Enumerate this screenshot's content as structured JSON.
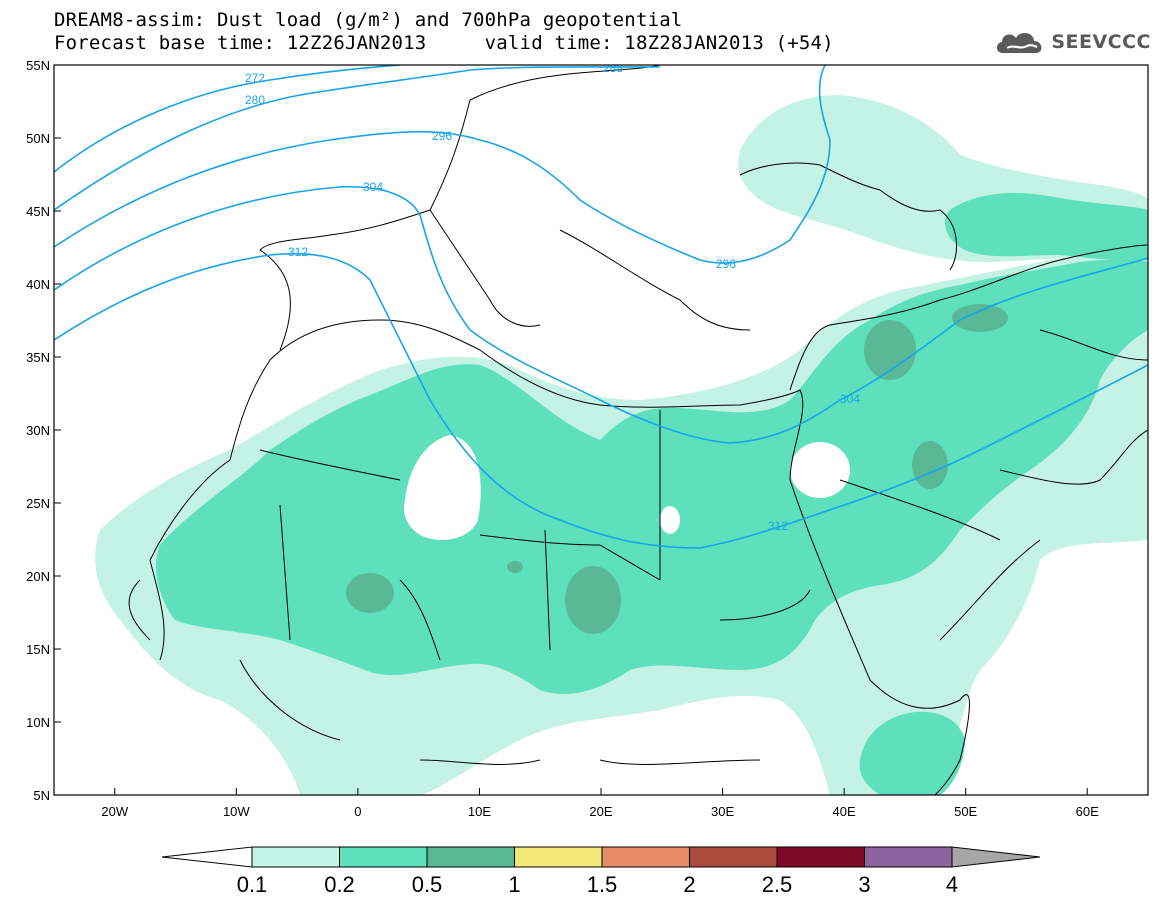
{
  "title": {
    "line1": "DREAM8-assim: Dust load (g/m²) and 700hPa geopotential",
    "line2": "Forecast base time: 12Z26JAN2013     valid time: 18Z28JAN2013 (+54)"
  },
  "logo": {
    "text": "SEEVCCC",
    "icon": "cloud-logo-icon",
    "color": "#5a5a5a"
  },
  "map": {
    "lon_range": [
      -25,
      65
    ],
    "lat_range": [
      5,
      55
    ],
    "lon_ticks": [
      "20W",
      "10W",
      "0",
      "10E",
      "20E",
      "30E",
      "40E",
      "50E",
      "60E"
    ],
    "lat_ticks": [
      "5N",
      "10N",
      "15N",
      "20N",
      "25N",
      "30N",
      "35N",
      "40N",
      "45N",
      "50N",
      "55N"
    ],
    "contour_color": "#1aa3e8",
    "contour_labels": [
      "272",
      "280",
      "288",
      "296",
      "304",
      "312",
      "296",
      "304",
      "312"
    ]
  },
  "colorbar": {
    "colors": [
      "#c4f2e4",
      "#5ee0bc",
      "#59b896",
      "#f2e87a",
      "#e88c68",
      "#ab4c40",
      "#7f0a28",
      "#8c64a0"
    ],
    "under_color": "#ffffff",
    "over_color": "#a6a6a6",
    "labels": [
      "0.1",
      "0.2",
      "0.5",
      "1",
      "1.5",
      "2",
      "2.5",
      "3",
      "4"
    ]
  }
}
